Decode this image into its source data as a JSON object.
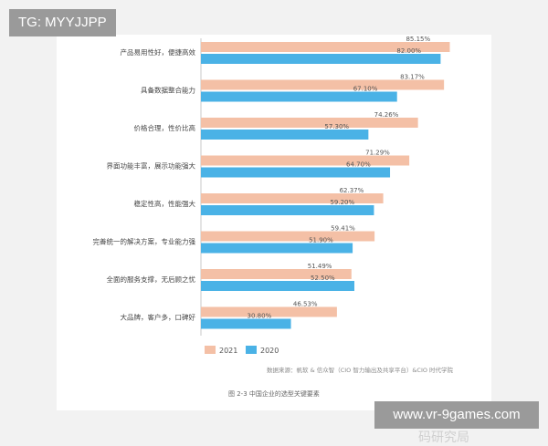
{
  "watermark_top": "TG: MYYJJPP",
  "watermark_bottom": "www.vr-9games.com",
  "zhihu_watermark": "知乎 @零代码研究局",
  "source_note": "数据来源：帆软 & 信众智（CIO 智力输出及共享平台）&CIO 时代学院",
  "caption": "图 2-3 中国企业的选型关键要素",
  "chart_data": {
    "type": "bar",
    "orientation": "horizontal",
    "categories": [
      "产品易用性好，便捷高效",
      "具备数据整合能力",
      "价格合理，性价比高",
      "界面功能丰富，展示功能强大",
      "稳定性高，性能强大",
      "完善统一的解决方案，专业能力强",
      "全面的服务支撑，无后顾之忧",
      "大品牌，客户多，口碑好"
    ],
    "series": [
      {
        "name": "2021",
        "color": "#f4c0a6",
        "values": [
          85.15,
          83.17,
          74.26,
          71.29,
          62.37,
          59.41,
          51.49,
          46.53
        ],
        "labels": [
          "85.15%",
          "83.17%",
          "74.26%",
          "71.29%",
          "62.37%",
          "59.41%",
          "51.49%",
          "46.53%"
        ]
      },
      {
        "name": "2020",
        "color": "#4ab2e6",
        "values": [
          82.0,
          67.1,
          57.3,
          64.7,
          59.2,
          51.9,
          52.5,
          30.8
        ],
        "labels": [
          "82.00%",
          "67.10%",
          "57.30%",
          "64.70%",
          "59.20%",
          "51.90%",
          "52.50%",
          "30.80%"
        ]
      }
    ],
    "xlim": [
      0,
      100
    ],
    "legend_position": "bottom-left",
    "grid": false
  }
}
